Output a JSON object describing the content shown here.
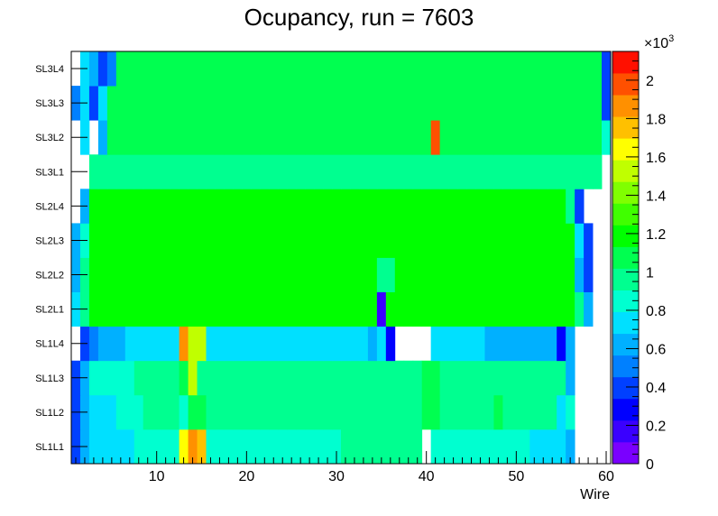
{
  "chart_data": {
    "type": "heatmap",
    "title": "Ocupancy, run = 7603",
    "xlabel": "Wire",
    "ylabel": "",
    "xlim": [
      0.5,
      60.5
    ],
    "x_ticks": [
      10,
      20,
      30,
      40,
      50,
      60
    ],
    "y_categories": [
      "SL1L1",
      "SL1L2",
      "SL1L3",
      "SL1L4",
      "SL2L1",
      "SL2L2",
      "SL2L3",
      "SL2L4",
      "SL3L1",
      "SL3L2",
      "SL3L3",
      "SL3L4"
    ],
    "z_range": [
      0,
      2150
    ],
    "z_ticks": [
      0,
      0.2,
      0.4,
      0.6,
      0.8,
      1,
      1.2,
      1.4,
      1.6,
      1.8,
      2
    ],
    "z_multiplier": "×10",
    "z_multiplier_exp": "3",
    "palette": [
      "#7a00ff",
      "#3a00ff",
      "#0000ff",
      "#0040ff",
      "#0080ff",
      "#00b0ff",
      "#00e0ff",
      "#00ffd0",
      "#00ff90",
      "#00ff50",
      "#00ff00",
      "#40ff00",
      "#80ff00",
      "#c0ff00",
      "#ffff00",
      "#ffc000",
      "#ff9000",
      "#ff5000",
      "#ff1000"
    ],
    "rows": [
      [
        380,
        580,
        700,
        730,
        730,
        780,
        780,
        850,
        850,
        800,
        800,
        820,
        1650,
        1900,
        1750,
        820,
        830,
        830,
        830,
        830,
        830,
        830,
        830,
        830,
        830,
        830,
        830,
        830,
        830,
        850,
        980,
        980,
        980,
        930,
        930,
        930,
        930,
        930,
        930,
        null,
        830,
        830,
        830,
        830,
        830,
        830,
        830,
        830,
        830,
        830,
        830,
        780,
        700,
        700,
        700,
        600,
        null,
        null,
        null,
        null
      ],
      [
        430,
        580,
        730,
        780,
        780,
        850,
        850,
        850,
        950,
        950,
        950,
        950,
        850,
        1050,
        1050,
        920,
        920,
        920,
        920,
        920,
        920,
        920,
        920,
        920,
        920,
        920,
        920,
        920,
        920,
        920,
        920,
        920,
        920,
        920,
        920,
        920,
        920,
        920,
        920,
        1050,
        1050,
        920,
        920,
        920,
        920,
        920,
        920,
        1050,
        920,
        920,
        920,
        950,
        950,
        950,
        700,
        800,
        null,
        null,
        null,
        null
      ],
      [
        430,
        650,
        850,
        880,
        880,
        880,
        880,
        950,
        950,
        950,
        950,
        950,
        1050,
        1500,
        920,
        920,
        920,
        920,
        920,
        920,
        920,
        920,
        920,
        920,
        920,
        920,
        920,
        920,
        920,
        920,
        920,
        920,
        920,
        920,
        920,
        920,
        920,
        920,
        920,
        1050,
        1050,
        920,
        920,
        920,
        920,
        920,
        920,
        920,
        920,
        920,
        920,
        920,
        920,
        920,
        920,
        650,
        null,
        null,
        null,
        null
      ],
      [
        null,
        400,
        480,
        620,
        620,
        620,
        720,
        720,
        720,
        720,
        720,
        720,
        1900,
        1550,
        1550,
        720,
        720,
        720,
        720,
        720,
        720,
        720,
        720,
        720,
        720,
        720,
        720,
        720,
        720,
        720,
        720,
        720,
        720,
        650,
        720,
        280,
        null,
        null,
        null,
        null,
        720,
        720,
        720,
        720,
        720,
        720,
        650,
        620,
        620,
        620,
        620,
        620,
        620,
        620,
        300,
        600,
        null,
        null,
        null,
        null
      ],
      [
        720,
        920,
        1150,
        1150,
        1150,
        1150,
        1150,
        1150,
        1150,
        1150,
        1150,
        1150,
        1150,
        1150,
        1150,
        1150,
        1150,
        1150,
        1150,
        1150,
        1150,
        1150,
        1150,
        1150,
        1150,
        1150,
        1150,
        1150,
        1150,
        1150,
        1150,
        1150,
        1150,
        1150,
        150,
        1150,
        1150,
        1150,
        1150,
        1150,
        1150,
        1150,
        1150,
        1150,
        1150,
        1150,
        1150,
        1150,
        1150,
        1150,
        1150,
        1150,
        1150,
        1150,
        1150,
        1150,
        920,
        650,
        null,
        null
      ],
      [
        580,
        920,
        1150,
        1150,
        1150,
        1150,
        1150,
        1150,
        1150,
        1150,
        1150,
        1150,
        1150,
        1150,
        1150,
        1150,
        1150,
        1150,
        1150,
        1150,
        1150,
        1150,
        1150,
        1150,
        1150,
        1150,
        1150,
        1150,
        1150,
        1150,
        1150,
        1150,
        1150,
        1150,
        920,
        920,
        1150,
        1150,
        1150,
        1150,
        1150,
        1150,
        1150,
        1150,
        1150,
        1150,
        1150,
        1150,
        1150,
        1150,
        1150,
        1150,
        1150,
        1150,
        1150,
        1150,
        620,
        450,
        null,
        null
      ],
      [
        580,
        900,
        1150,
        1150,
        1150,
        1150,
        1150,
        1150,
        1150,
        1150,
        1150,
        1150,
        1150,
        1150,
        1150,
        1150,
        1150,
        1150,
        1150,
        1150,
        1150,
        1150,
        1150,
        1150,
        1150,
        1150,
        1150,
        1150,
        1150,
        1150,
        1150,
        1150,
        1150,
        1150,
        1150,
        1150,
        1150,
        1150,
        1150,
        1150,
        1150,
        1150,
        1150,
        1150,
        1150,
        1150,
        1150,
        1150,
        1150,
        1150,
        1150,
        1150,
        1150,
        1150,
        1150,
        1150,
        700,
        450,
        null,
        null
      ],
      [
        null,
        620,
        1150,
        1150,
        1150,
        1150,
        1150,
        1150,
        1150,
        1150,
        1150,
        1150,
        1150,
        1150,
        1150,
        1150,
        1150,
        1150,
        1150,
        1150,
        1150,
        1150,
        1150,
        1150,
        1150,
        1150,
        1150,
        1150,
        1150,
        1150,
        1150,
        1150,
        1150,
        1150,
        1150,
        1150,
        1150,
        1150,
        1150,
        1150,
        1150,
        1150,
        1150,
        1150,
        1150,
        1150,
        1150,
        1150,
        1150,
        1150,
        1150,
        1150,
        1150,
        1150,
        1150,
        920,
        450,
        null,
        null,
        null
      ],
      [
        null,
        null,
        920,
        950,
        950,
        950,
        950,
        950,
        950,
        950,
        950,
        950,
        950,
        950,
        950,
        950,
        950,
        950,
        950,
        950,
        950,
        950,
        950,
        950,
        950,
        950,
        950,
        950,
        950,
        950,
        950,
        950,
        950,
        950,
        950,
        950,
        950,
        950,
        950,
        950,
        950,
        950,
        950,
        950,
        950,
        950,
        950,
        950,
        950,
        950,
        950,
        950,
        950,
        950,
        950,
        950,
        950,
        950,
        950,
        null
      ],
      [
        null,
        700,
        null,
        580,
        1100,
        1100,
        1100,
        1100,
        1100,
        1100,
        1100,
        1100,
        1100,
        1100,
        1100,
        1100,
        1100,
        1100,
        1100,
        1100,
        1100,
        1100,
        1100,
        1100,
        1100,
        1100,
        1100,
        1100,
        1100,
        1100,
        1100,
        1100,
        1100,
        1100,
        1100,
        1100,
        1100,
        1100,
        1100,
        1100,
        1950,
        1100,
        1100,
        1100,
        1100,
        1100,
        1100,
        1100,
        1100,
        1100,
        1100,
        1100,
        1100,
        1100,
        1100,
        1100,
        1100,
        1100,
        1100,
        800
      ],
      [
        480,
        700,
        400,
        750,
        1050,
        1050,
        1050,
        1050,
        1050,
        1050,
        1050,
        1050,
        1050,
        1050,
        1050,
        1050,
        1050,
        1050,
        1050,
        1050,
        1050,
        1050,
        1050,
        1050,
        1050,
        1050,
        1050,
        1050,
        1050,
        1050,
        1050,
        1050,
        1050,
        1050,
        1050,
        1050,
        1050,
        1050,
        1050,
        1050,
        1050,
        1050,
        1050,
        1050,
        1050,
        1050,
        1050,
        1050,
        1050,
        1050,
        1050,
        1050,
        1050,
        1050,
        1050,
        1050,
        1050,
        1050,
        1050,
        350
      ],
      [
        null,
        750,
        650,
        350,
        550,
        1050,
        1050,
        1050,
        1050,
        1050,
        1050,
        1050,
        1050,
        1050,
        1050,
        1050,
        1050,
        1050,
        1050,
        1050,
        1050,
        1050,
        1050,
        1050,
        1050,
        1050,
        1050,
        1050,
        1050,
        1050,
        1050,
        1050,
        1050,
        1050,
        1050,
        1050,
        1050,
        1050,
        1050,
        1050,
        1050,
        1050,
        1050,
        1050,
        1050,
        1050,
        1050,
        1050,
        1050,
        1050,
        1050,
        1050,
        1050,
        1050,
        1050,
        1050,
        1050,
        1050,
        1050,
        350
      ]
    ]
  }
}
